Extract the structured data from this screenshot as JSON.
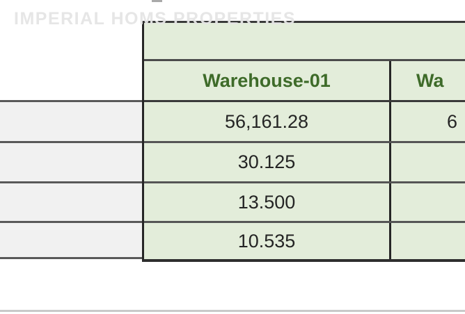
{
  "watermark": {
    "text": "IMPERIAL HOMS PROPERTIES"
  },
  "table": {
    "header": {
      "col1": "Warehouse-01",
      "col2_partial": "Wa"
    },
    "rows": [
      {
        "col1": "56,161.28",
        "col2_partial": "6"
      },
      {
        "col1": "30.125",
        "col2_partial": ""
      },
      {
        "col1": "13.500",
        "col2_partial": ""
      },
      {
        "col1": "10.535",
        "col2_partial": ""
      }
    ],
    "row_labels": [
      "",
      "",
      "",
      ""
    ]
  },
  "colors": {
    "cell_green": "#e3edda",
    "header_text_green": "#3e6b29",
    "body_text": "#242424",
    "row_label_bg": "#f1f1f1",
    "border_dark": "#262626",
    "border_row_gray": "#555555",
    "watermark_gray": "#e5e5e5",
    "bottom_divider_gray": "#c9c9c9"
  }
}
